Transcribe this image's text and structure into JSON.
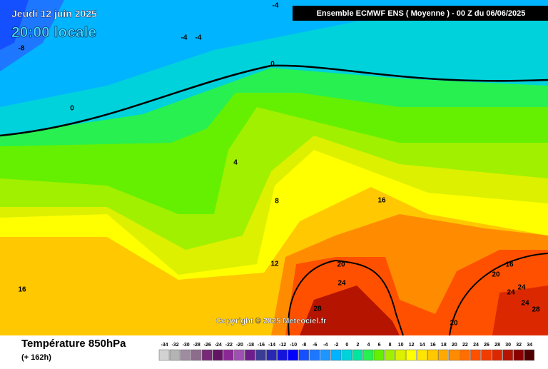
{
  "header": {
    "date": "Jeudi 12 juin 2025",
    "time": "20:00 locale",
    "banner": "Ensemble ECMWF ENS  ( Moyenne )  -  00 Z du 06/06/2025"
  },
  "map": {
    "contour_labels": [
      -4,
      -4,
      -4,
      -8,
      0,
      0,
      4,
      8,
      16,
      12,
      20,
      16,
      20,
      24,
      24,
      24,
      24,
      28,
      16,
      28,
      20
    ],
    "copyright": "Copyright © 2025 Meteociel.fr"
  },
  "footer": {
    "title": "Température 850hPa",
    "lead": "(+ 162h)"
  },
  "legend": {
    "labels": [
      -34,
      -32,
      -30,
      -28,
      -26,
      -24,
      -22,
      -20,
      -18,
      -16,
      -14,
      -12,
      -10,
      -8,
      -6,
      -4,
      -2,
      0,
      2,
      4,
      6,
      8,
      10,
      12,
      14,
      16,
      18,
      20,
      22,
      24,
      26,
      28,
      30,
      32,
      34
    ],
    "colors": [
      "#d2d2d2",
      "#b4b4b4",
      "#a08ca0",
      "#8c6e8c",
      "#782878",
      "#641464",
      "#8c2896",
      "#a050b4",
      "#6e1e8c",
      "#3c3c96",
      "#2828b4",
      "#1414dc",
      "#0000ff",
      "#1450ff",
      "#1e78ff",
      "#1e96ff",
      "#00b4ff",
      "#00d2dc",
      "#00e6a0",
      "#28f050",
      "#64f000",
      "#a0f000",
      "#dcf000",
      "#ffff00",
      "#ffe600",
      "#ffc800",
      "#ffaa00",
      "#ff8c00",
      "#ff6e00",
      "#ff5000",
      "#f03c00",
      "#dc2800",
      "#b41400",
      "#8c0000",
      "#500000"
    ]
  }
}
